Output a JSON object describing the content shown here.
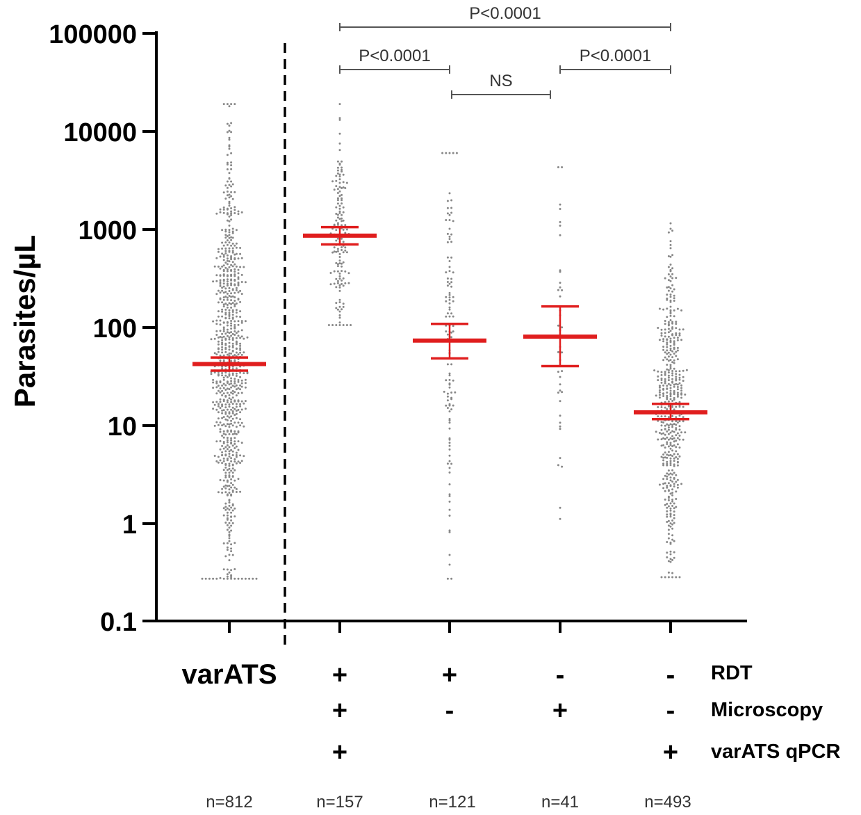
{
  "chart_data": {
    "type": "scatter",
    "ylabel": "Parasites/µL",
    "yscale": "log",
    "ylim": [
      0.1,
      100000
    ],
    "y_ticks": [
      "0.1",
      "1",
      "10",
      "100",
      "1000",
      "10000",
      "100000"
    ],
    "groups": [
      {
        "label": "varATS",
        "RDT": "",
        "Microscopy": "",
        "qPCR": "",
        "n": "n=812",
        "n_points": 812,
        "center": 42,
        "ci": [
          36,
          49
        ],
        "min": 0.27,
        "max": 19000
      },
      {
        "label": "",
        "RDT": "+",
        "Microscopy": "+",
        "qPCR": "+",
        "n": "n=157",
        "n_points": 157,
        "center": 860,
        "ci": [
          700,
          1050
        ],
        "min": 105,
        "max": 19000
      },
      {
        "label": "",
        "RDT": "+",
        "Microscopy": "-",
        "qPCR": "",
        "n": "n=121",
        "n_points": 121,
        "center": 73,
        "ci": [
          48,
          108
        ],
        "min": 0.27,
        "max": 6000
      },
      {
        "label": "",
        "RDT": "-",
        "Microscopy": "+",
        "qPCR": "",
        "n": "n=41",
        "n_points": 41,
        "center": 80,
        "ci": [
          40,
          163
        ],
        "min": 1.1,
        "max": 4300
      },
      {
        "label": "",
        "RDT": "-",
        "Microscopy": "-",
        "qPCR": "+",
        "n": "n=493",
        "n_points": 493,
        "center": 13.5,
        "ci": [
          11.5,
          16.5
        ],
        "min": 0.28,
        "max": 1150
      }
    ],
    "row_labels": [
      "RDT",
      "Microscopy",
      "varATS qPCR"
    ],
    "comparisons": [
      {
        "from": 1,
        "to": 4,
        "label": "P<0.0001"
      },
      {
        "from": 1,
        "to": 2,
        "label": "P<0.0001"
      },
      {
        "from": 2,
        "to": 3,
        "label": "NS"
      },
      {
        "from": 3,
        "to": 4,
        "label": "P<0.0001"
      }
    ],
    "colors": {
      "points": "#888888",
      "summary": "#e01e1e",
      "axis": "#000000",
      "bracket": "#555555"
    }
  }
}
